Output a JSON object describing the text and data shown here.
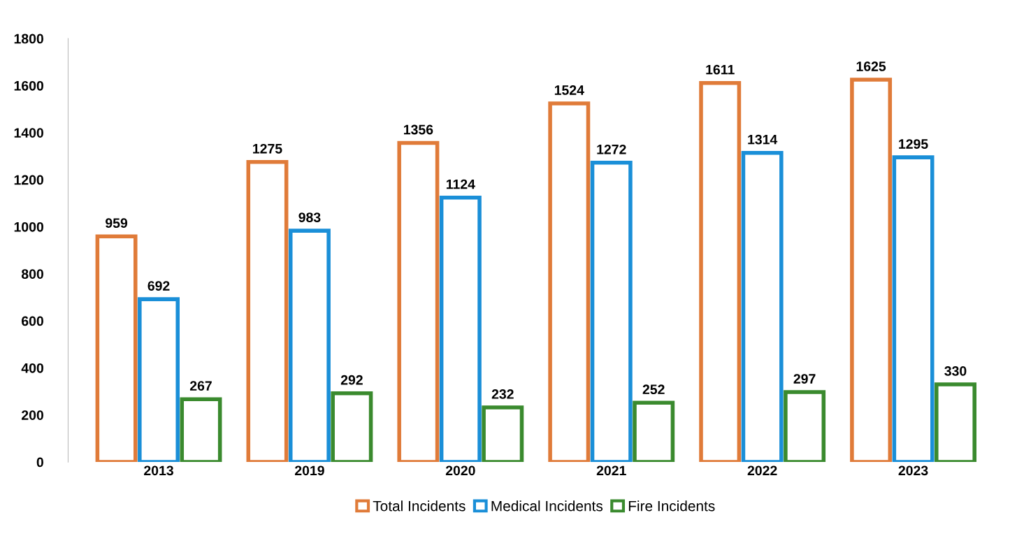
{
  "chart_data": {
    "type": "bar",
    "categories": [
      "2013",
      "2019",
      "2020",
      "2021",
      "2022",
      "2023"
    ],
    "series": [
      {
        "name": "Total Incidents",
        "color": "#e07b39",
        "values": [
          959,
          1275,
          1356,
          1524,
          1611,
          1625
        ]
      },
      {
        "name": "Medical Incidents",
        "color": "#1a8fd8",
        "values": [
          692,
          983,
          1124,
          1272,
          1314,
          1295
        ]
      },
      {
        "name": "Fire Incidents",
        "color": "#3a8a2e",
        "values": [
          267,
          292,
          232,
          252,
          297,
          330
        ]
      }
    ],
    "ylim": [
      0,
      1800
    ],
    "yticks": [
      0,
      200,
      400,
      600,
      800,
      1000,
      1200,
      1400,
      1600,
      1800
    ],
    "data_labels": true,
    "legend": "bottom",
    "grid": false
  }
}
